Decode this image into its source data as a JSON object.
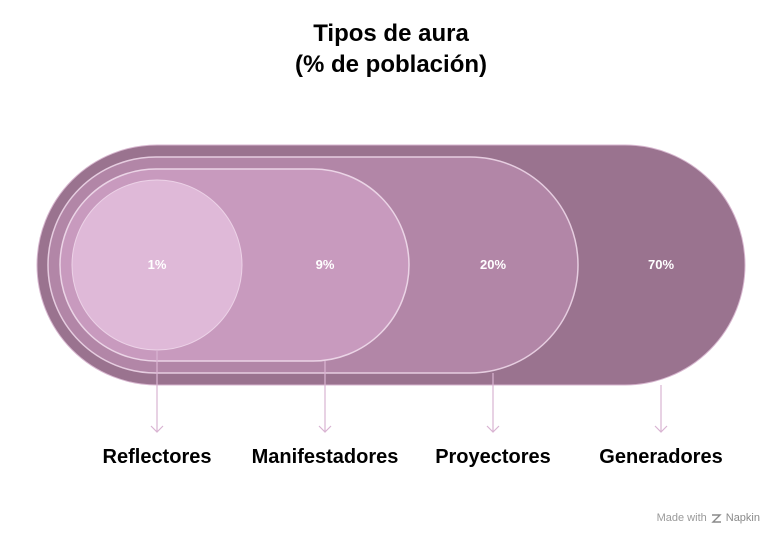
{
  "title": {
    "line1": "Tipos de aura",
    "line2": "(% de población)"
  },
  "segments": [
    {
      "label": "Generadores",
      "percent": 70,
      "value_text": "70%",
      "color": "#9a738f"
    },
    {
      "label": "Proyectores",
      "percent": 20,
      "value_text": "20%",
      "color": "#b286a7"
    },
    {
      "label": "Manifestadores",
      "percent": 9,
      "value_text": "9%",
      "color": "#c89abe"
    },
    {
      "label": "Reflectores",
      "percent": 1,
      "value_text": "1%",
      "color": "#dfb9d8"
    }
  ],
  "watermark": {
    "made_with": "Made with",
    "brand": "Napkin"
  }
}
